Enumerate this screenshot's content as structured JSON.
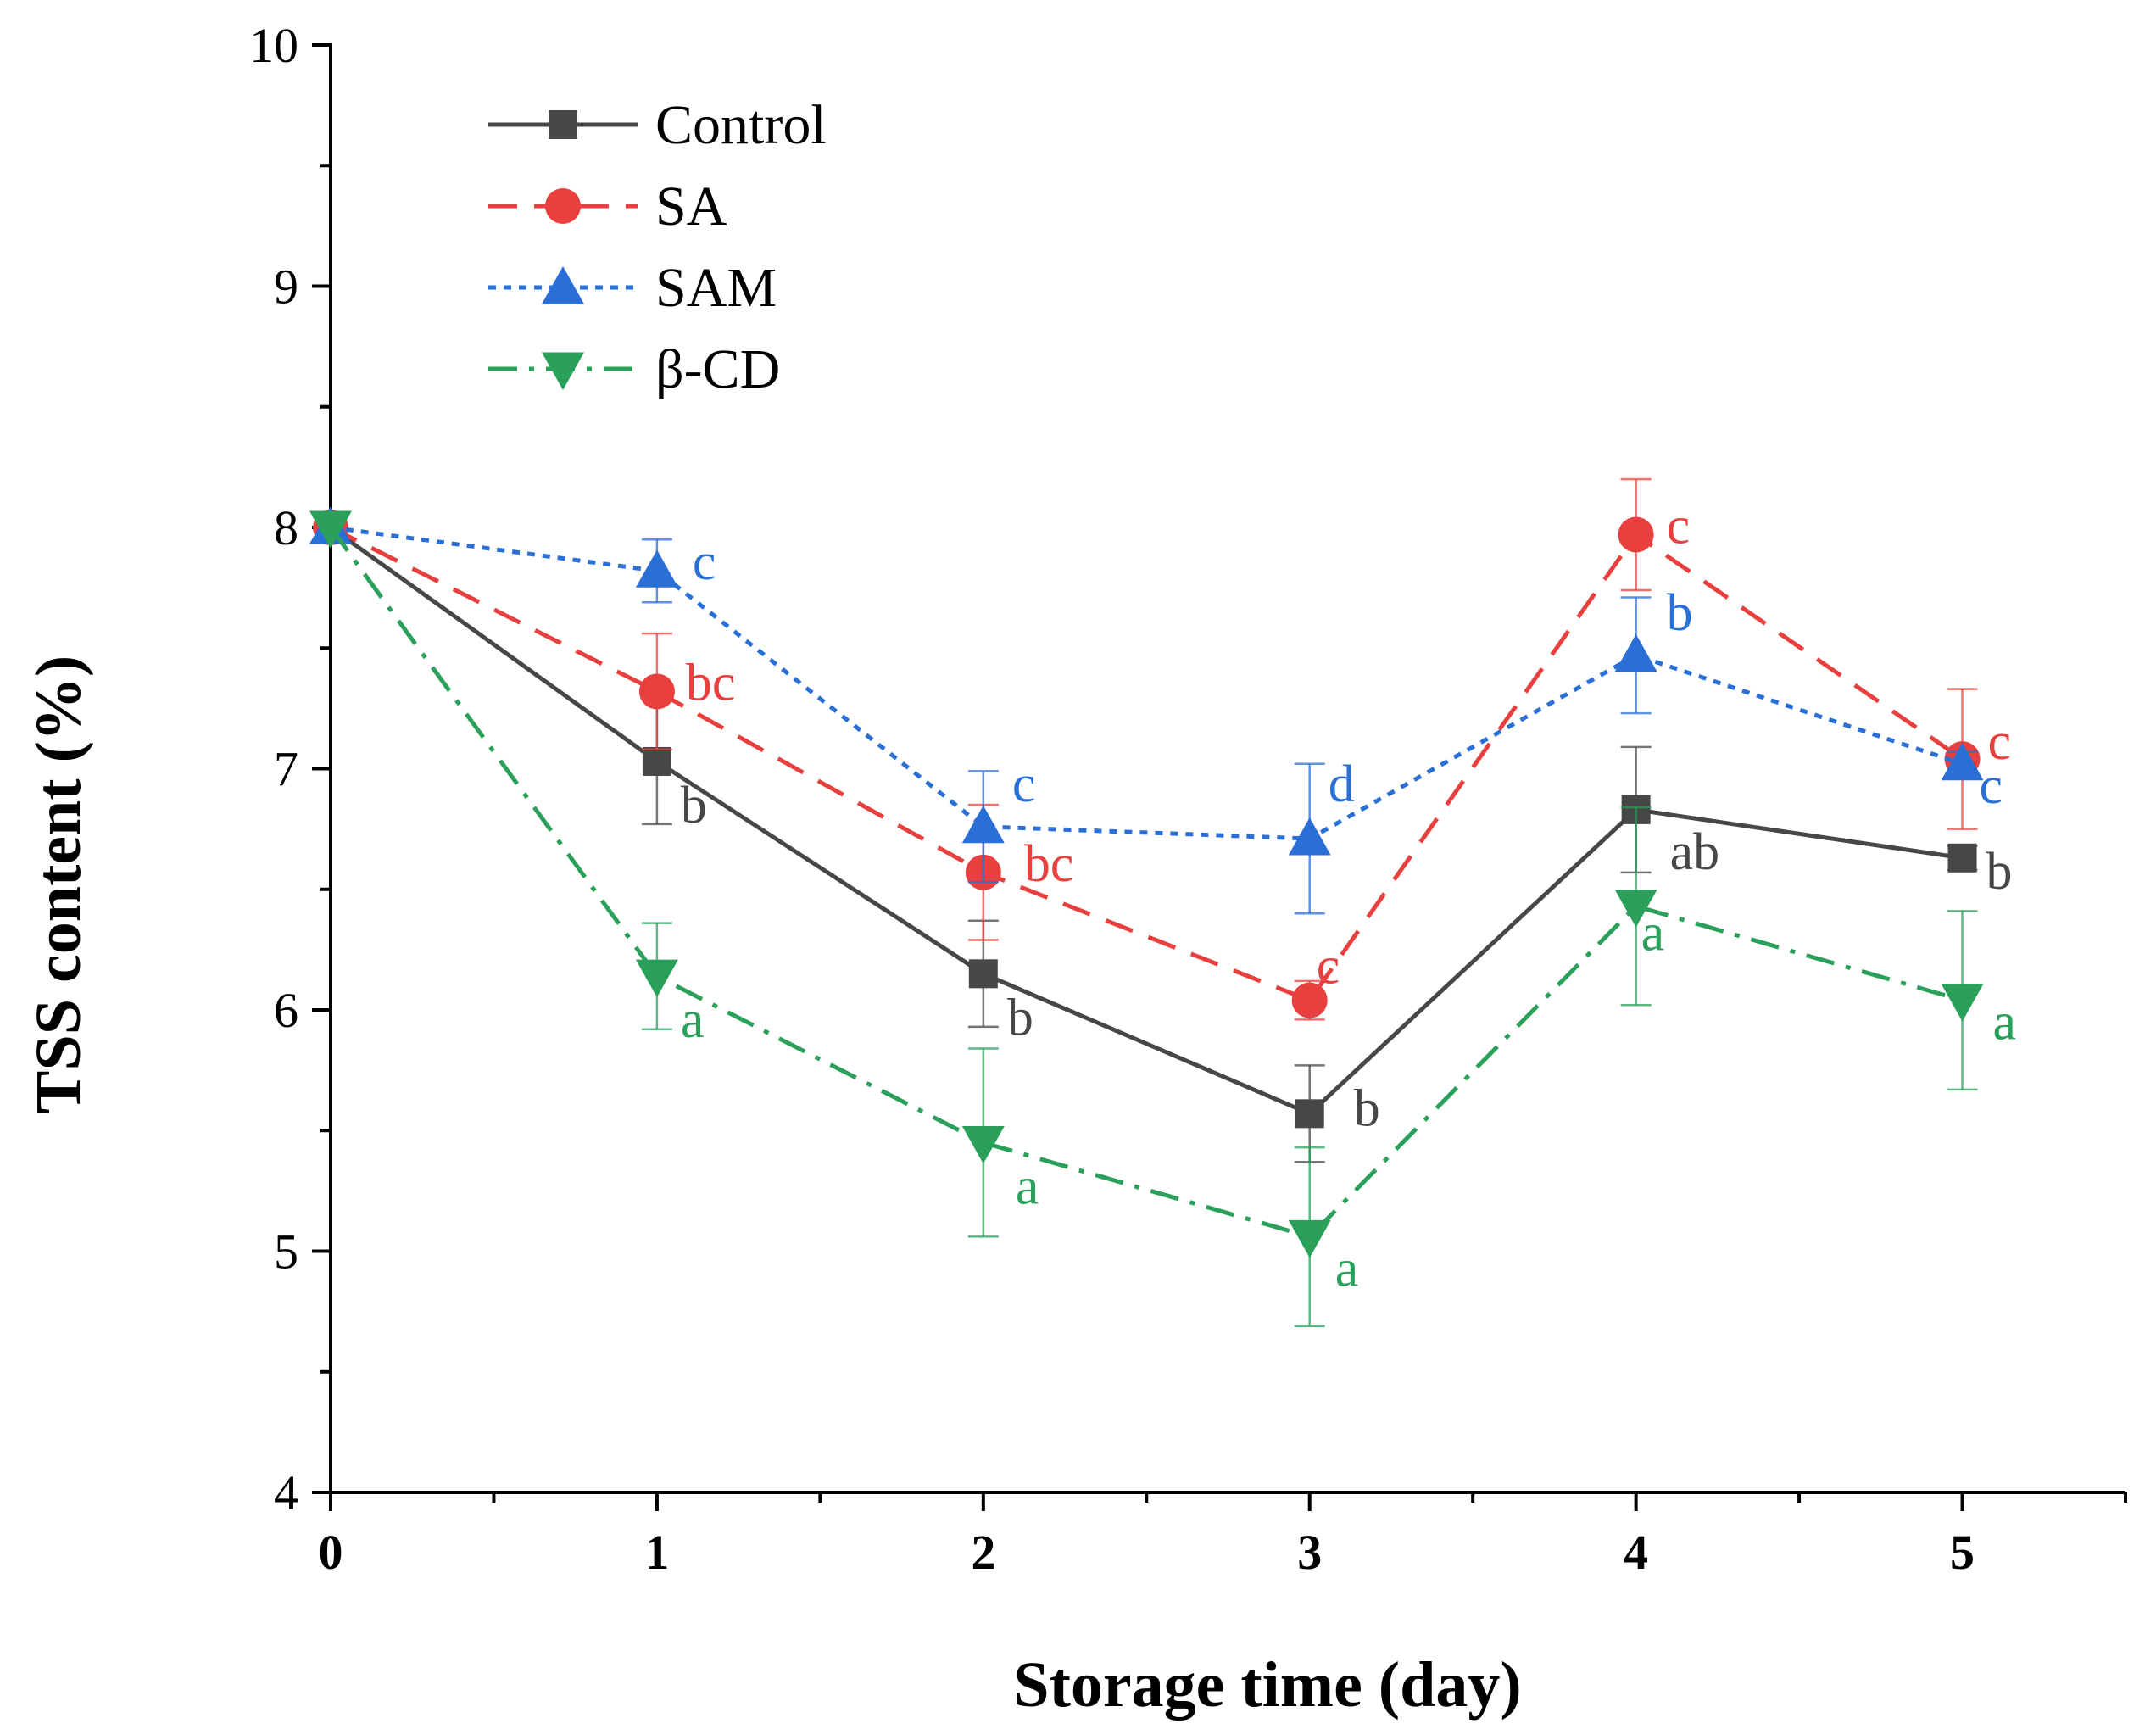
{
  "chart_data": {
    "type": "line",
    "title": "",
    "xlabel": "Storage time (day)",
    "ylabel": "TSS content (%)",
    "x": [
      0,
      1,
      2,
      3,
      4,
      5
    ],
    "xlim": [
      0,
      5.5
    ],
    "ylim": [
      4,
      10
    ],
    "xticks": [
      "0",
      "1",
      "2",
      "3",
      "4",
      "5"
    ],
    "yticks": [
      "4",
      "5",
      "6",
      "7",
      "8",
      "9",
      "10"
    ],
    "grid": false,
    "legend_position": "top-left",
    "series": [
      {
        "name": "Control",
        "color": "#474747",
        "marker": "square",
        "line_style": "solid",
        "values": [
          8.0,
          7.03,
          6.15,
          5.57,
          6.83,
          6.63
        ],
        "errors": [
          0.0,
          0.26,
          0.22,
          0.2,
          0.26,
          0.05
        ],
        "labels": [
          "",
          "b",
          "b",
          "b",
          "ab",
          "b"
        ]
      },
      {
        "name": "SA",
        "color": "#e8403f",
        "marker": "circle",
        "line_style": "dashed",
        "values": [
          8.0,
          7.32,
          6.57,
          6.04,
          7.97,
          7.04
        ],
        "errors": [
          0.0,
          0.24,
          0.28,
          0.08,
          0.23,
          0.29
        ],
        "labels": [
          "",
          "bc",
          "bc",
          "c",
          "c",
          "c"
        ]
      },
      {
        "name": "SAM",
        "color": "#2a6fd6",
        "marker": "triangle-up",
        "line_style": "dotted",
        "values": [
          8.0,
          7.82,
          6.76,
          6.71,
          7.47,
          7.02
        ],
        "errors": [
          0.0,
          0.13,
          0.23,
          0.31,
          0.24,
          0.05
        ],
        "labels": [
          "",
          "c",
          "c",
          "d",
          "b",
          "c"
        ]
      },
      {
        "name": "β-CD",
        "color": "#2aa05a",
        "marker": "triangle-down",
        "line_style": "dashdot",
        "values": [
          8.0,
          6.14,
          5.45,
          5.06,
          6.43,
          6.04
        ],
        "errors": [
          0.0,
          0.22,
          0.39,
          0.37,
          0.41,
          0.37
        ],
        "labels": [
          "",
          "a",
          "a",
          "a",
          "a",
          "a"
        ]
      }
    ]
  }
}
